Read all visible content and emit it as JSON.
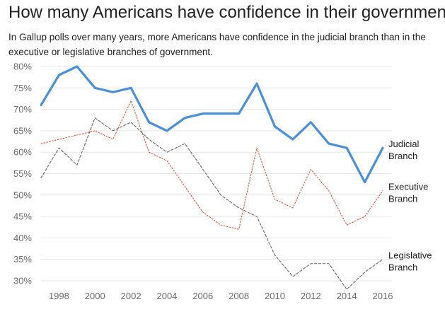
{
  "chart_data": {
    "type": "line",
    "title": "How many Americans have confidence in their government?",
    "subtitle": "In Gallup polls over many years, more Americans have confidence in the judicial branch than in the executive or legislative branches of government.",
    "xlabel": "",
    "ylabel": "",
    "xlim": [
      1997,
      2016
    ],
    "ylim": [
      0.28,
      0.8
    ],
    "x_ticks": [
      1998,
      2000,
      2002,
      2004,
      2006,
      2008,
      2010,
      2012,
      2014,
      2016
    ],
    "y_ticks": [
      "80%",
      "75%",
      "70%",
      "65%",
      "60%",
      "55%",
      "50%",
      "45%",
      "40%",
      "35%",
      "30%"
    ],
    "y_tick_values": [
      0.8,
      0.75,
      0.7,
      0.65,
      0.6,
      0.55,
      0.5,
      0.45,
      0.4,
      0.35,
      0.3
    ],
    "grid": true,
    "x": [
      1997,
      1998,
      1999,
      2000,
      2001,
      2002,
      2003,
      2004,
      2005,
      2006,
      2007,
      2008,
      2009,
      2010,
      2011,
      2012,
      2013,
      2014,
      2015,
      2016
    ],
    "series": [
      {
        "name": "Judicial Branch",
        "label_lines": [
          "Judicial",
          "Branch"
        ],
        "color": "#4a8fd8",
        "style": "solid",
        "x": [
          1997,
          1998,
          1999,
          2000,
          2001,
          2002,
          2003,
          2004,
          2005,
          2006,
          2007,
          2008,
          2009,
          2010,
          2011,
          2012,
          2013,
          2014,
          2015,
          2016
        ],
        "values": [
          0.71,
          0.78,
          0.8,
          0.75,
          0.74,
          0.75,
          0.67,
          0.65,
          0.68,
          0.69,
          0.69,
          0.69,
          0.76,
          0.66,
          0.63,
          0.67,
          0.62,
          0.61,
          0.53,
          0.61
        ]
      },
      {
        "name": "Executive Branch",
        "label_lines": [
          "Executive",
          "Branch"
        ],
        "color": "#e0533e",
        "style": "dotted",
        "x": [
          1997,
          1998,
          1999,
          2000,
          2001,
          2002,
          2003,
          2004,
          2005,
          2006,
          2007,
          2008,
          2009,
          2010,
          2011,
          2012,
          2013,
          2014,
          2015,
          2016
        ],
        "values": [
          0.62,
          0.63,
          0.64,
          0.65,
          0.63,
          0.72,
          0.6,
          0.58,
          0.52,
          0.46,
          0.43,
          0.42,
          0.61,
          0.49,
          0.47,
          0.56,
          0.51,
          0.43,
          0.45,
          0.51
        ]
      },
      {
        "name": "Legislative Branch",
        "label_lines": [
          "Legislative",
          "Branch"
        ],
        "color": "#666666",
        "style": "dashed",
        "x": [
          1997,
          1998,
          1999,
          2000,
          2001,
          2002,
          2003,
          2004,
          2005,
          2006,
          2007,
          2008,
          2009,
          2010,
          2011,
          2012,
          2013,
          2014,
          2015,
          2016
        ],
        "values": [
          0.54,
          0.61,
          0.57,
          0.68,
          0.65,
          0.67,
          0.63,
          0.6,
          0.62,
          0.56,
          0.5,
          0.47,
          0.45,
          0.36,
          0.31,
          0.34,
          0.34,
          0.28,
          0.32,
          0.35
        ]
      }
    ]
  }
}
